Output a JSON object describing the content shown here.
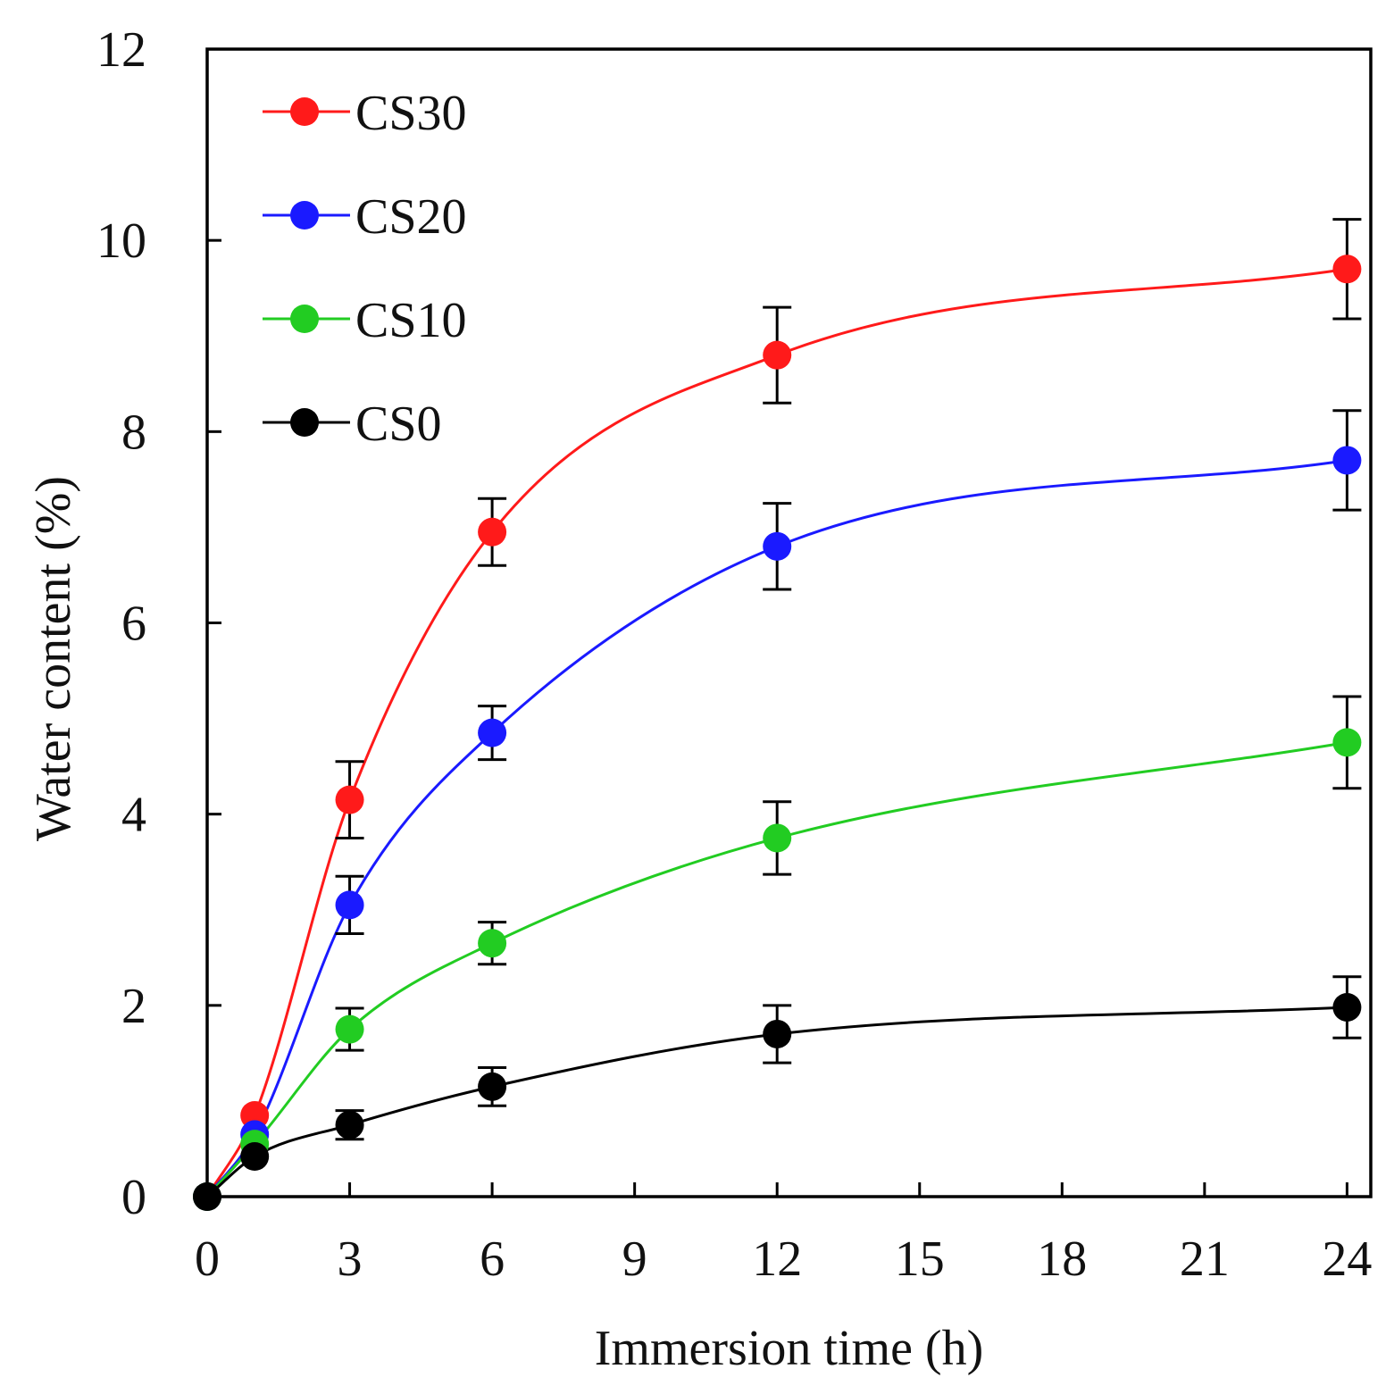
{
  "chart_data": {
    "type": "line",
    "title": "",
    "xlabel": "Immersion time (h)",
    "ylabel": "Water content (%)",
    "xlim": [
      0,
      24.5
    ],
    "ylim": [
      0,
      12
    ],
    "x_ticks": [
      "0",
      "3",
      "6",
      "9",
      "12",
      "15",
      "18",
      "21",
      "24"
    ],
    "y_ticks": [
      "0",
      "2",
      "4",
      "6",
      "8",
      "10",
      "12"
    ],
    "x_tick_values": [
      0,
      3,
      6,
      9,
      12,
      15,
      18,
      21,
      24
    ],
    "y_tick_values": [
      0,
      2,
      4,
      6,
      8,
      10,
      12
    ],
    "grid": false,
    "legend_position": "top-left",
    "x": [
      0,
      1,
      3,
      6,
      12,
      24
    ],
    "series": [
      {
        "name": "CS30",
        "color": "#ff1a1a",
        "values": [
          0,
          0.85,
          4.15,
          6.95,
          8.8,
          9.7
        ],
        "errors": [
          0,
          0,
          0.4,
          0.35,
          0.5,
          0.52
        ]
      },
      {
        "name": "CS20",
        "color": "#1a1aff",
        "values": [
          0,
          0.65,
          3.05,
          4.85,
          6.8,
          7.7
        ],
        "errors": [
          0,
          0,
          0.3,
          0.28,
          0.45,
          0.52
        ]
      },
      {
        "name": "CS10",
        "color": "#22cc22",
        "values": [
          0,
          0.55,
          1.75,
          2.65,
          3.75,
          4.75
        ],
        "errors": [
          0,
          0,
          0.22,
          0.22,
          0.38,
          0.48
        ]
      },
      {
        "name": "CS0",
        "color": "#000000",
        "values": [
          0,
          0.42,
          0.75,
          1.15,
          1.7,
          1.98
        ],
        "errors": [
          0,
          0,
          0.15,
          0.2,
          0.3,
          0.32
        ]
      }
    ]
  }
}
